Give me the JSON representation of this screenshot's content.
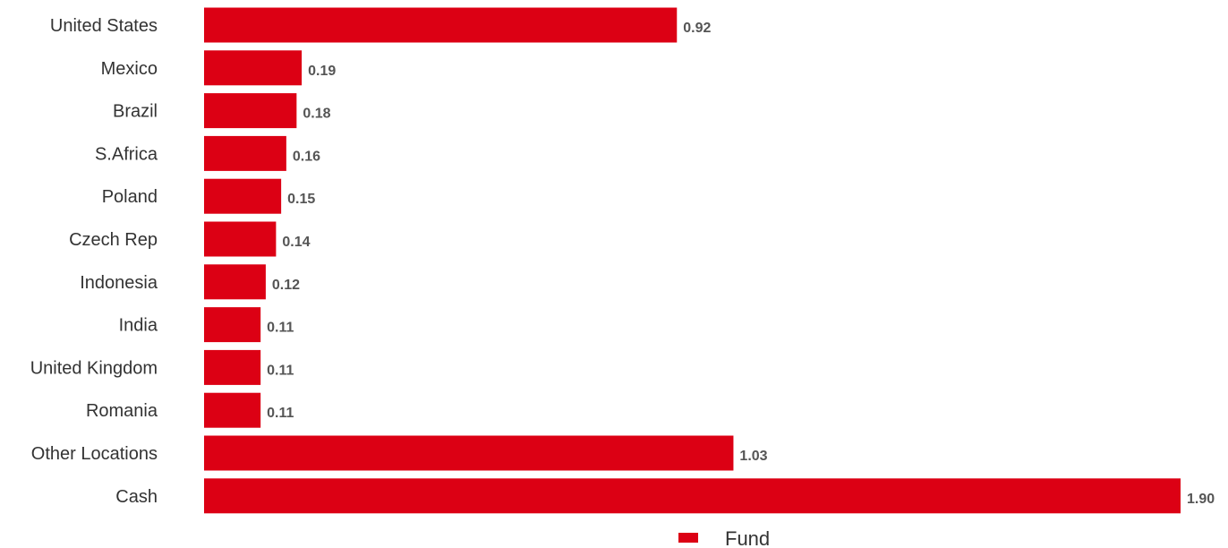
{
  "chart_data": {
    "type": "bar",
    "orientation": "horizontal",
    "categories": [
      "United States",
      "Mexico",
      "Brazil",
      "S.Africa",
      "Poland",
      "Czech Rep",
      "Indonesia",
      "India",
      "United Kingdom",
      "Romania",
      "Other Locations",
      "Cash"
    ],
    "series": [
      {
        "name": "Fund",
        "values": [
          0.92,
          0.19,
          0.18,
          0.16,
          0.15,
          0.14,
          0.12,
          0.11,
          0.11,
          0.11,
          1.03,
          1.9
        ],
        "value_labels": [
          "0.92",
          "0.19",
          "0.18",
          "0.16",
          "0.15",
          "0.14",
          "0.12",
          "0.11",
          "0.11",
          "0.11",
          "1.03",
          "1.90"
        ],
        "color": "#dc0014"
      }
    ],
    "xlim": [
      0,
      1.9
    ],
    "grid": false,
    "legend_position": "bottom-center"
  }
}
